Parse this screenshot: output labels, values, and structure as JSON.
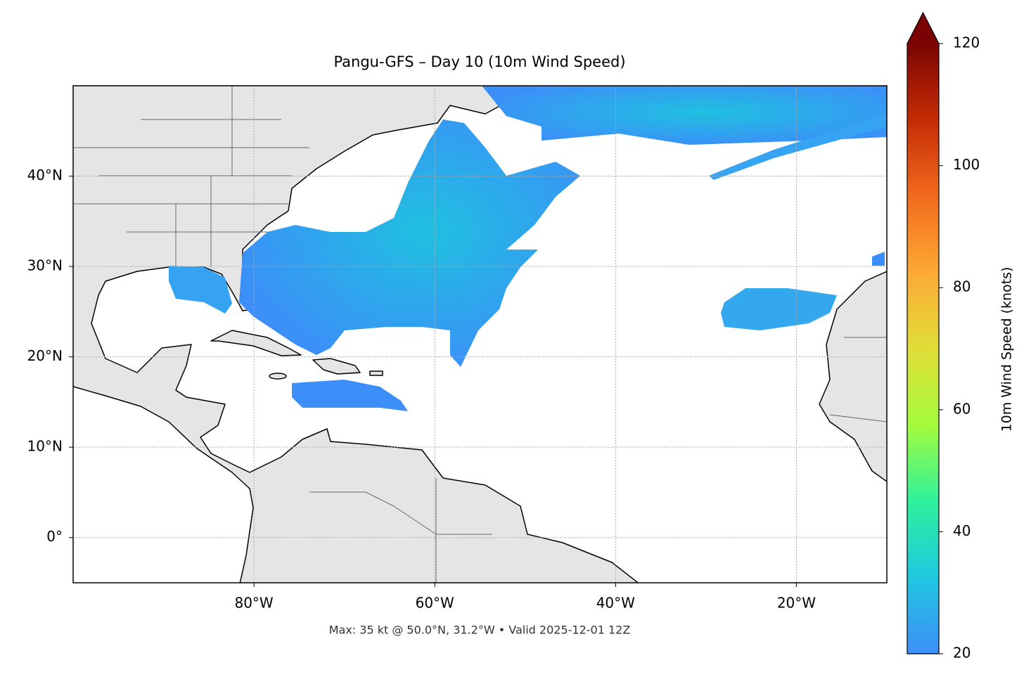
{
  "title": "Pangu-GFS – Day 10 (10m Wind Speed)",
  "footer": "Max: 35 kt @ 50.0°N, 31.2°W • Valid 2025-12-01 12Z",
  "map": {
    "lonlim": [
      -100,
      -10
    ],
    "latlim": [
      -5,
      50
    ],
    "grid": true,
    "lonticks": [
      {
        "value": -80,
        "label": "80°W"
      },
      {
        "value": -60,
        "label": "60°W"
      },
      {
        "value": -40,
        "label": "40°W"
      },
      {
        "value": -20,
        "label": "20°W"
      }
    ],
    "latticks": [
      {
        "value": 0,
        "label": "0°"
      },
      {
        "value": 10,
        "label": "10°N"
      },
      {
        "value": 20,
        "label": "20°N"
      },
      {
        "value": 30,
        "label": "30°N"
      },
      {
        "value": 40,
        "label": "40°N"
      }
    ]
  },
  "colorbar": {
    "label": "10m Wind Speed (knots)",
    "lim": [
      20,
      120
    ],
    "ticks": [
      20,
      40,
      60,
      80,
      100,
      120
    ],
    "colors": [
      "#3e8ef9",
      "#1fc8de",
      "#2ef19c",
      "#a4fc3c",
      "#e1dd37",
      "#fca935",
      "#f26a1c",
      "#c52c06",
      "#7a0403"
    ]
  }
}
